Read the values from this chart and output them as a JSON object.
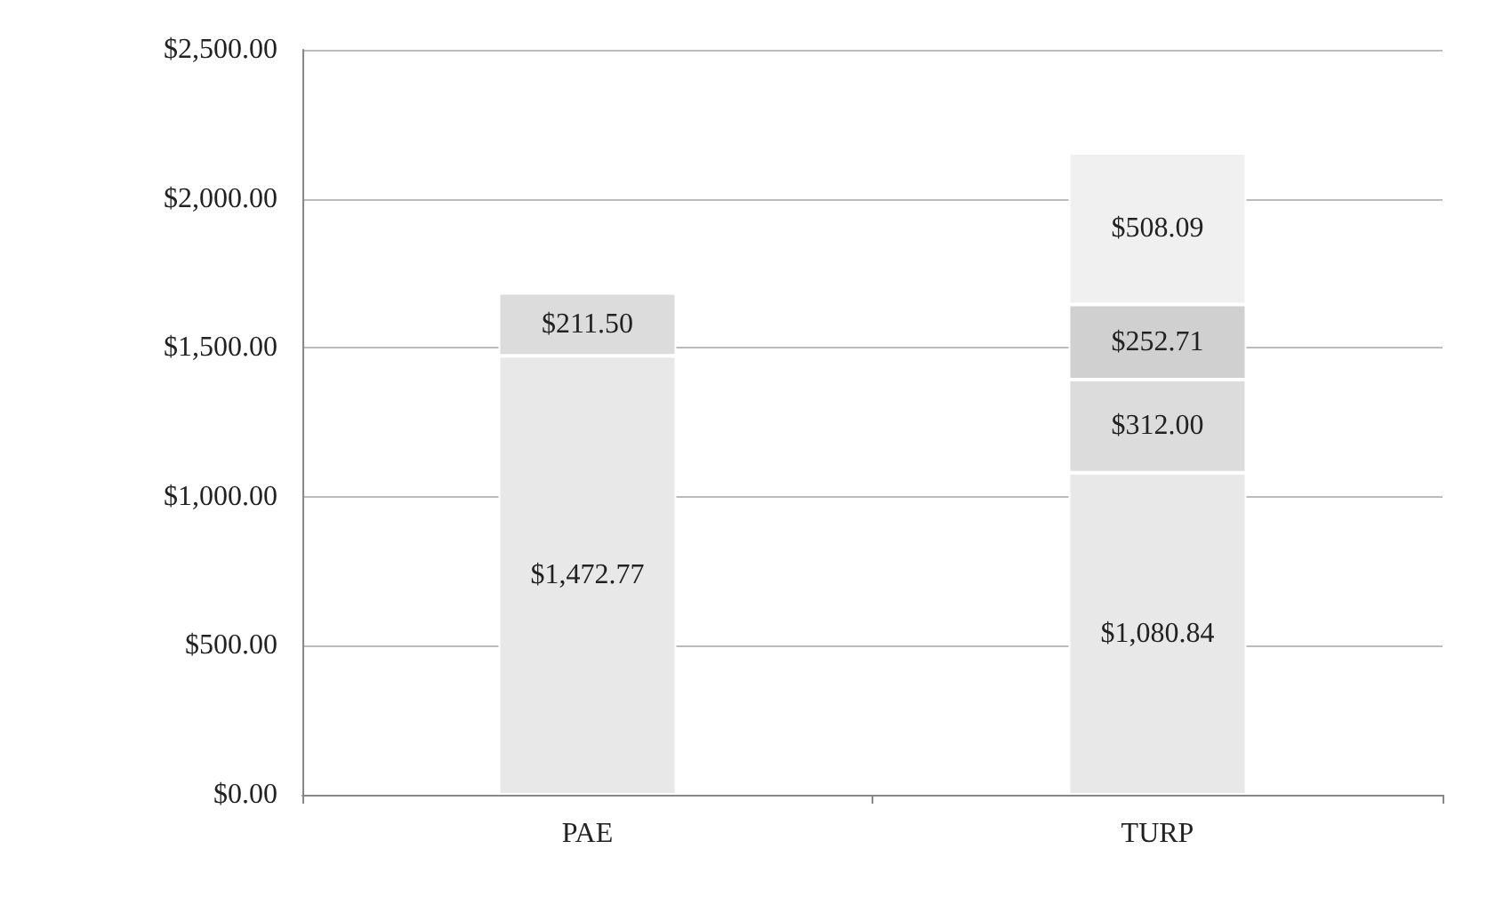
{
  "chart_data": {
    "type": "bar",
    "stacked": true,
    "categories": [
      "PAE",
      "TURP"
    ],
    "series": [
      {
        "color": "#e8e8e8",
        "values": [
          1472.77,
          1080.84
        ],
        "value_labels": [
          "$1,472.77",
          "$1,080.84"
        ]
      },
      {
        "color": "#dcdcdc",
        "values": [
          211.5,
          312.0
        ],
        "value_labels": [
          "$211.50",
          "$312.00"
        ]
      },
      {
        "color": "#d0d0d0",
        "values": [
          null,
          252.71
        ],
        "value_labels": [
          null,
          "$252.71"
        ]
      },
      {
        "color": "#f0f0f0",
        "values": [
          null,
          508.09
        ],
        "value_labels": [
          null,
          "$508.09"
        ]
      }
    ],
    "ylim": [
      0,
      2500
    ],
    "yticks": [
      {
        "value": 0,
        "label": "$0.00"
      },
      {
        "value": 500,
        "label": "$500.00"
      },
      {
        "value": 1000,
        "label": "$1,000.00"
      },
      {
        "value": 1500,
        "label": "$1,500.00"
      },
      {
        "value": 2000,
        "label": "$2,000.00"
      },
      {
        "value": 2500,
        "label": "$2,500.00"
      }
    ],
    "grid": "y"
  }
}
